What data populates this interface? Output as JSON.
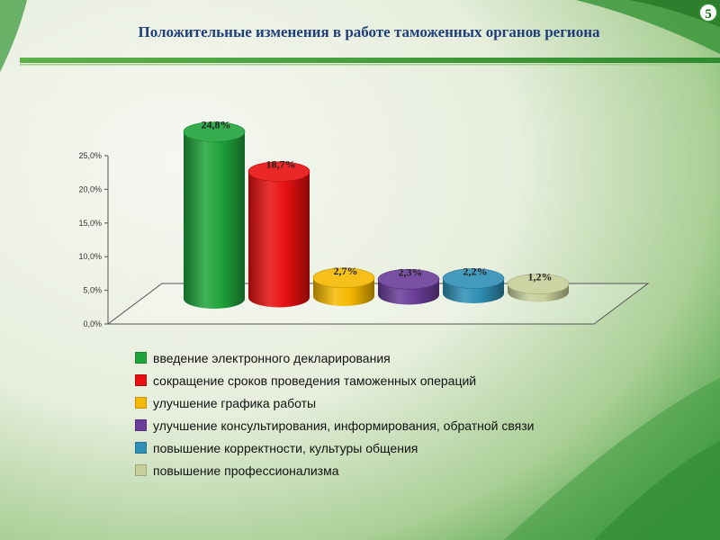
{
  "header": {
    "title": "Положительные изменения в работе таможенных органов региона",
    "page_number": "5"
  },
  "colors": {
    "title": "#1f3f7a",
    "background_top": "#f4f7f0",
    "background_green": "#3f9b3f"
  },
  "chart_data": {
    "type": "bar",
    "categories": [
      "введение электронного декларирования",
      "сокращение сроков проведения таможенных операций",
      "улучшение графика работы",
      "улучшение консультирования, информирования, обратной связи",
      "повышение корректности, культуры общения",
      "повышение профессионализма"
    ],
    "values": [
      24.8,
      18.7,
      2.7,
      2.3,
      2.2,
      1.2
    ],
    "value_labels": [
      "24,8%",
      "18,7%",
      "2,7%",
      "2,3%",
      "2,2%",
      "1,2%"
    ],
    "colors": [
      "#1fa43a",
      "#e81010",
      "#f5b800",
      "#6a3d9a",
      "#2f8fb5",
      "#c7cf9a"
    ],
    "ylim": [
      0,
      25
    ],
    "yticks": [
      0,
      5,
      10,
      15,
      20,
      25
    ],
    "ytick_labels": [
      "0,0%",
      "5,0%",
      "10,0%",
      "15,0%",
      "20,0%",
      "25,0%"
    ],
    "legend_position": "bottom",
    "grid": false
  }
}
